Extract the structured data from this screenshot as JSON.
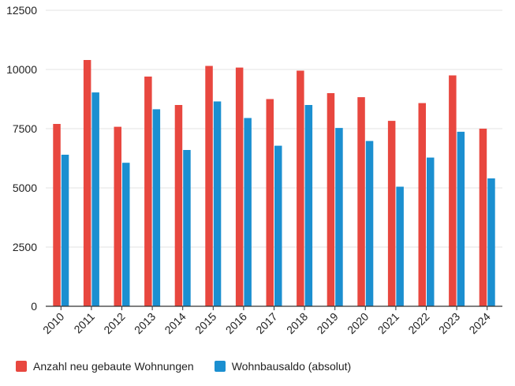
{
  "chart_data": {
    "type": "bar",
    "categories": [
      "2010",
      "2011",
      "2012",
      "2013",
      "2014",
      "2015",
      "2016",
      "2017",
      "2018",
      "2019",
      "2020",
      "2021",
      "2022",
      "2023",
      "2024"
    ],
    "series": [
      {
        "name": "Anzahl neu gebaute Wohnungen",
        "color": "#e8473f",
        "values": [
          7700,
          10400,
          7580,
          9700,
          8500,
          10150,
          10080,
          8750,
          9950,
          9000,
          8830,
          7830,
          8580,
          9750,
          7500
        ]
      },
      {
        "name": "Wohnbausaldo (absolut)",
        "color": "#1b8fd0",
        "values": [
          6400,
          9030,
          6060,
          8320,
          6600,
          8650,
          7950,
          6780,
          8500,
          7530,
          6980,
          5050,
          6280,
          7370,
          5400
        ]
      }
    ],
    "yticks": [
      "0",
      "2500",
      "5000",
      "7500",
      "10000",
      "12500"
    ],
    "ylim": [
      0,
      12500
    ],
    "grid": true,
    "legend_position": "bottom-left"
  }
}
